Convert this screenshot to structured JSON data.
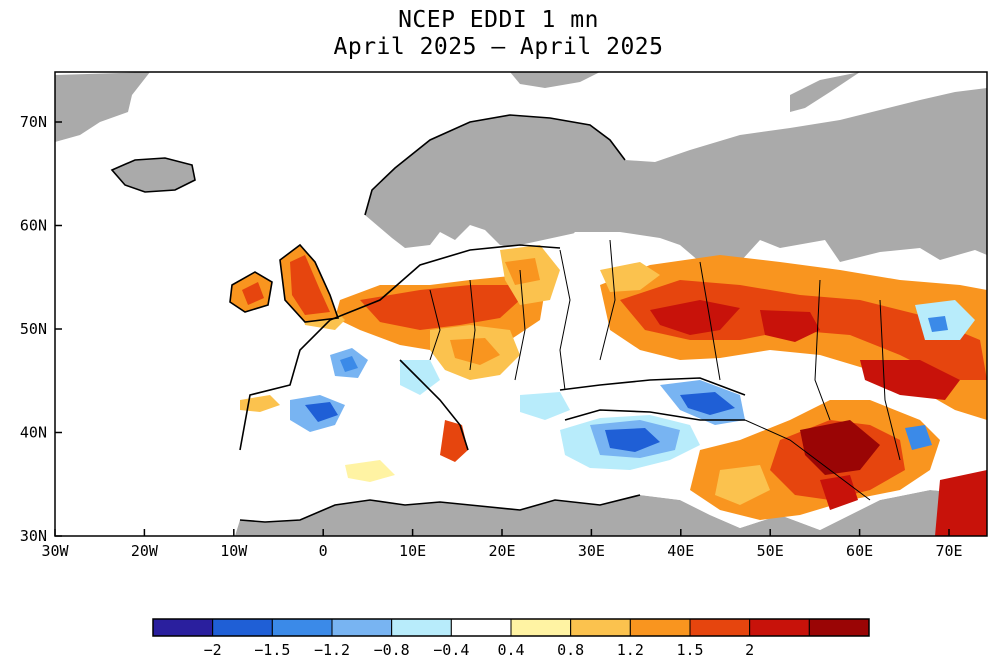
{
  "title": {
    "line1": "NCEP EDDI 1 mn",
    "line2": "April 2025 – April 2025"
  },
  "map": {
    "lat_ticks": [
      "30N",
      "40N",
      "50N",
      "60N",
      "70N"
    ],
    "lon_ticks": [
      "30W",
      "20W",
      "10W",
      "0",
      "10E",
      "20E",
      "30E",
      "40E",
      "50E",
      "60E",
      "70E"
    ],
    "land_no_data_color": "#aaaaaa",
    "ocean_color": "#ffffff"
  },
  "legend": {
    "colors": [
      "#2a1f9e",
      "#1f5fd6",
      "#3b8ae8",
      "#78b4f2",
      "#b8ecfb",
      "#ffffff",
      "#fff3a3",
      "#fbc24e",
      "#f9951f",
      "#e6450e",
      "#c8120a",
      "#9a0505"
    ],
    "labels": [
      "−2",
      "−1.5",
      "−1.2",
      "−0.8",
      "−0.4",
      "0.4",
      "0.8",
      "1.2",
      "1.5",
      "2"
    ]
  }
}
